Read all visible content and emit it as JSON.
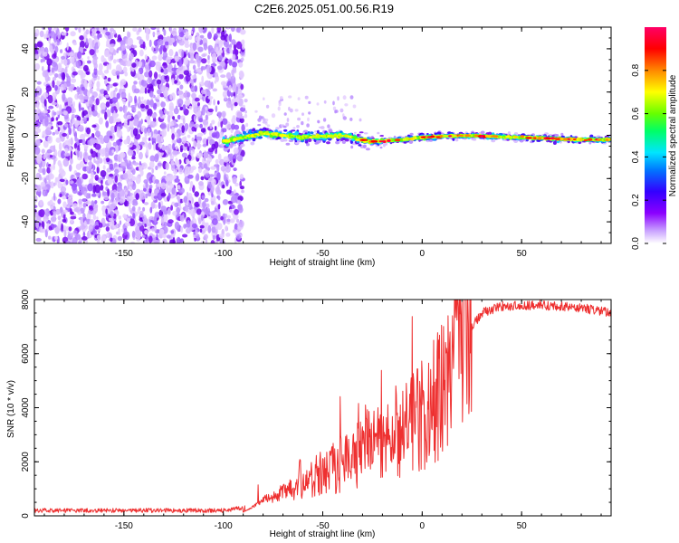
{
  "chart_data": [
    {
      "type": "heatmap",
      "title": "C2E6.2025.051.00.56.R19",
      "xlabel": "Height of straight line (km)",
      "ylabel": "Frequency (Hz)",
      "xlim": [
        -195,
        95
      ],
      "ylim": [
        -50,
        50
      ],
      "xticks": [
        -150,
        -100,
        -50,
        0,
        50
      ],
      "xtick_labels": [
        "-150",
        "-100",
        "-50",
        "0",
        "50"
      ],
      "yticks": [
        -40,
        -20,
        0,
        20,
        40
      ],
      "ytick_labels": [
        "-40",
        "-20",
        "0",
        "20",
        "40"
      ],
      "noise_region": [
        -195,
        -90
      ],
      "signal_track": [
        {
          "x": -100,
          "y": -3
        },
        {
          "x": -80,
          "y": 1
        },
        {
          "x": -60,
          "y": -1
        },
        {
          "x": -40,
          "y": 0
        },
        {
          "x": -25,
          "y": -3
        },
        {
          "x": -10,
          "y": -2
        },
        {
          "x": 0,
          "y": -1
        },
        {
          "x": 20,
          "y": 0
        },
        {
          "x": 50,
          "y": -1
        },
        {
          "x": 80,
          "y": -2
        },
        {
          "x": 95,
          "y": -2
        }
      ],
      "colorbar": {
        "label": "Normalized spectral amplitude",
        "range": [
          0,
          1
        ],
        "ticks": [
          0.0,
          0.2,
          0.4,
          0.6,
          0.8
        ],
        "tick_labels": [
          "0.0",
          "0.2",
          "0.4",
          "0.6",
          "0.8"
        ],
        "colors": [
          "#ffffff",
          "#8b00ff",
          "#3300ff",
          "#0066ff",
          "#00e5ff",
          "#00ff66",
          "#66ff00",
          "#ffff00",
          "#ff8800",
          "#ff0000",
          "#ff0066"
        ]
      }
    },
    {
      "type": "line",
      "xlabel": "Height of straight line (km)",
      "ylabel": "SNR (10 * v/v)",
      "xlim": [
        -195,
        95
      ],
      "ylim": [
        0,
        8000
      ],
      "xticks": [
        -150,
        -100,
        -50,
        0,
        50
      ],
      "xtick_labels": [
        "-150",
        "-100",
        "-50",
        "0",
        "50"
      ],
      "yticks": [
        0,
        2000,
        4000,
        6000,
        8000
      ],
      "ytick_labels": [
        "0",
        "2000",
        "4000",
        "6000",
        "8000"
      ],
      "color": "#ee3030",
      "trend": [
        {
          "x": -195,
          "y": 200
        },
        {
          "x": -100,
          "y": 200
        },
        {
          "x": -90,
          "y": 300
        },
        {
          "x": -80,
          "y": 1000
        },
        {
          "x": -60,
          "y": 1300
        },
        {
          "x": -40,
          "y": 1900
        },
        {
          "x": -20,
          "y": 2800
        },
        {
          "x": 0,
          "y": 3600
        },
        {
          "x": 10,
          "y": 4600
        },
        {
          "x": 20,
          "y": 6500
        },
        {
          "x": 30,
          "y": 7500
        },
        {
          "x": 40,
          "y": 7750
        },
        {
          "x": 60,
          "y": 7800
        },
        {
          "x": 80,
          "y": 7700
        },
        {
          "x": 95,
          "y": 7500
        }
      ]
    }
  ]
}
